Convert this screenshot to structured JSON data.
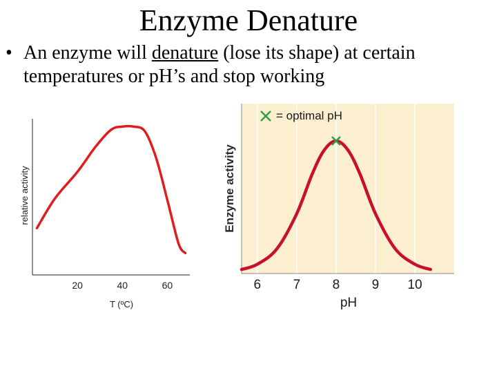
{
  "slide": {
    "title": "Enzyme Denature",
    "bullet": {
      "prefix": "An enzyme will ",
      "keyword": "denature",
      "suffix": " (lose its shape) at certain temperatures or pH’s and stop working"
    }
  },
  "chart_data": [
    {
      "type": "line",
      "title": "",
      "xlabel": "T (ºC)",
      "ylabel": "relative activity",
      "xlim": [
        0,
        70
      ],
      "ylim": [
        0,
        1
      ],
      "xticks": [
        "20",
        "40",
        "60"
      ],
      "grid": false,
      "line_color": "#e01c1c",
      "series": [
        {
          "x": [
            2,
            10,
            20,
            28,
            35,
            40,
            45,
            50,
            55,
            60,
            65,
            68
          ],
          "y": [
            0.3,
            0.49,
            0.66,
            0.82,
            0.93,
            0.95,
            0.95,
            0.92,
            0.75,
            0.48,
            0.2,
            0.14
          ]
        }
      ]
    },
    {
      "type": "line",
      "title": "",
      "legend": "× = optimal pH",
      "xlabel": "pH",
      "ylabel": "Enzyme activity",
      "xlim": [
        5.6,
        11
      ],
      "ylim": [
        0,
        1
      ],
      "xticks": [
        "6",
        "7",
        "8",
        "9",
        "10"
      ],
      "grid": true,
      "background": "#fbefcf",
      "line_color": "#c8102e",
      "marker_color": "#2f9e44",
      "optimal_x": 8,
      "series": [
        {
          "x": [
            5.6,
            6,
            6.5,
            7,
            7.4,
            7.7,
            8,
            8.3,
            8.6,
            9,
            9.5,
            10,
            10.4
          ],
          "y": [
            0.01,
            0.05,
            0.17,
            0.44,
            0.75,
            0.93,
            1.0,
            0.93,
            0.75,
            0.44,
            0.17,
            0.05,
            0.01
          ]
        }
      ]
    }
  ]
}
